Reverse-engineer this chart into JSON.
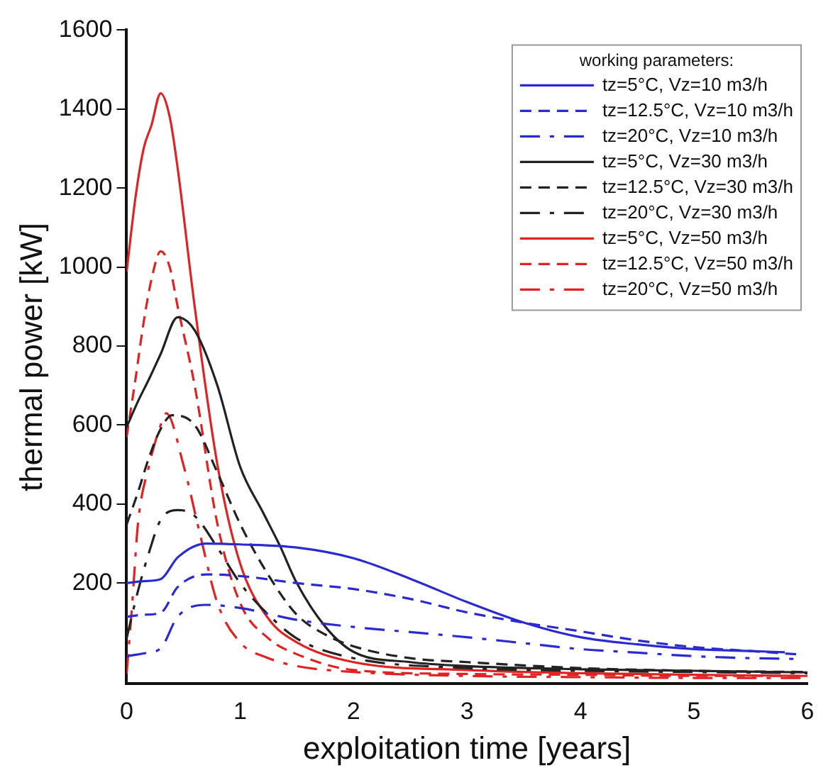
{
  "chart_data": {
    "type": "line",
    "xlabel": "exploitation time [years]",
    "ylabel": "thermal power [kW]",
    "legend_title": "working parameters:",
    "legend": "top right",
    "grid": false,
    "marker": "none",
    "xlim": [
      0,
      6
    ],
    "xticks": [
      0,
      1,
      2,
      3,
      4,
      5,
      6
    ],
    "ylim": [
      -55,
      1600
    ],
    "yticks": [
      200,
      400,
      600,
      800,
      1000,
      1200,
      1400,
      1600
    ],
    "series": [
      {
        "name": "tz=5°C, Vz=10 m3/h",
        "color": "#2a2ad0",
        "line_style": "solid",
        "x": [
          0,
          0.15,
          0.3,
          0.45,
          0.7,
          1,
          1.5,
          2,
          2.5,
          3,
          3.5,
          4,
          4.5,
          5,
          5.5,
          5.8
        ],
        "values": [
          200,
          205,
          210,
          265,
          300,
          298,
          290,
          263,
          211,
          152,
          100,
          63,
          45,
          33,
          28,
          25
        ]
      },
      {
        "name": "tz=12.5°C, Vz=10 m3/h",
        "color": "#2a2ad0",
        "line_style": "dashed",
        "x": [
          0,
          0.15,
          0.3,
          0.45,
          0.7,
          1,
          1.5,
          2,
          2.5,
          3,
          3.5,
          4,
          4.5,
          5,
          5.5,
          5.9
        ],
        "values": [
          115,
          120,
          125,
          190,
          222,
          218,
          200,
          185,
          160,
          126,
          100,
          78,
          55,
          38,
          28,
          20
        ]
      },
      {
        "name": "tz=20°C, Vz=10 m3/h",
        "color": "#2a2ad0",
        "line_style": "dashdot",
        "x": [
          0,
          0.15,
          0.3,
          0.45,
          0.7,
          1,
          1.5,
          2,
          2.5,
          3,
          3.5,
          4,
          4.5,
          5,
          5.5,
          5.9
        ],
        "values": [
          15,
          22,
          35,
          115,
          145,
          137,
          107,
          89,
          76,
          63,
          48,
          33,
          24,
          15,
          10,
          8
        ]
      },
      {
        "name": "tz=5°C, Vz=30 m3/h",
        "color": "#222222",
        "line_style": "solid",
        "x": [
          0,
          0.1,
          0.2,
          0.3,
          0.45,
          0.6,
          0.8,
          1,
          1.2,
          1.35,
          1.5,
          1.75,
          2,
          2.5,
          3,
          4,
          5,
          6
        ],
        "values": [
          595,
          660,
          718,
          780,
          873,
          840,
          700,
          495,
          380,
          295,
          200,
          90,
          26,
          0,
          -10,
          -18,
          -22,
          -26
        ]
      },
      {
        "name": "tz=12.5°C, Vz=30 m3/h",
        "color": "#222222",
        "line_style": "dashed",
        "x": [
          0,
          0.1,
          0.2,
          0.3,
          0.4,
          0.6,
          0.8,
          1,
          1.25,
          1.5,
          1.75,
          2,
          2.5,
          3,
          4,
          5,
          6
        ],
        "values": [
          348,
          430,
          520,
          590,
          625,
          600,
          480,
          350,
          220,
          120,
          70,
          40,
          10,
          0,
          -15,
          -22,
          -25
        ]
      },
      {
        "name": "tz=20°C, Vz=30 m3/h",
        "color": "#222222",
        "line_style": "dashdot",
        "x": [
          0,
          0.1,
          0.2,
          0.3,
          0.45,
          0.6,
          0.8,
          1,
          1.25,
          1.5,
          2,
          3,
          4,
          5,
          6
        ],
        "values": [
          60,
          180,
          280,
          360,
          385,
          370,
          290,
          200,
          120,
          60,
          10,
          -15,
          -22,
          -25,
          -28
        ]
      },
      {
        "name": "tz=5°C, Vz=50 m3/h",
        "color": "#e02222",
        "line_style": "solid",
        "x": [
          0,
          0.08,
          0.15,
          0.22,
          0.3,
          0.38,
          0.45,
          0.6,
          0.8,
          1,
          1.25,
          1.5,
          2,
          3,
          4,
          5,
          6
        ],
        "values": [
          988,
          1180,
          1300,
          1360,
          1440,
          1380,
          1250,
          900,
          500,
          250,
          110,
          50,
          0,
          -20,
          -28,
          -32,
          -35
        ]
      },
      {
        "name": "tz=12.5°C, Vz=50 m3/h",
        "color": "#e02222",
        "line_style": "dashed",
        "x": [
          0,
          0.08,
          0.15,
          0.22,
          0.3,
          0.38,
          0.45,
          0.6,
          0.8,
          1,
          1.25,
          1.5,
          2,
          3,
          4,
          5,
          6
        ],
        "values": [
          570,
          720,
          860,
          970,
          1040,
          1000,
          900,
          700,
          350,
          150,
          60,
          20,
          -20,
          -30,
          -32,
          -35,
          -35
        ]
      },
      {
        "name": "tz=20°C, Vz=50 m3/h",
        "color": "#e02222",
        "line_style": "dashdot",
        "x": [
          0,
          0.05,
          0.1,
          0.2,
          0.3,
          0.35,
          0.5,
          0.65,
          0.8,
          1,
          1.25,
          1.5,
          2,
          3,
          4,
          5,
          6
        ],
        "values": [
          -30,
          150,
          350,
          500,
          600,
          630,
          500,
          320,
          150,
          50,
          10,
          -10,
          -25,
          -35,
          -38,
          -40,
          -40
        ]
      }
    ]
  }
}
